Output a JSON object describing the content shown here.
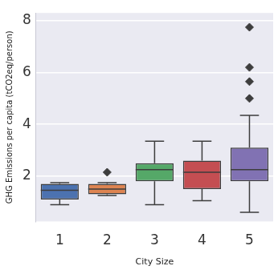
{
  "chart_data": {
    "type": "boxplot",
    "x_label": "City Size",
    "y_label": "GHG Emissions per capita (tCO2eq/person)",
    "categories": [
      "1",
      "2",
      "3",
      "4",
      "5"
    ],
    "colors": [
      "#4c72b0",
      "#dd8452",
      "#55a868",
      "#c44e52",
      "#8172b3"
    ],
    "boxes": [
      {
        "min": 0.9,
        "q1": 1.1,
        "median": 1.45,
        "q3": 1.7,
        "max": 1.75,
        "outliers": []
      },
      {
        "min": 1.25,
        "q1": 1.3,
        "median": 1.5,
        "q3": 1.7,
        "max": 1.75,
        "outliers": [
          2.15
        ]
      },
      {
        "min": 0.9,
        "q1": 1.8,
        "median": 2.25,
        "q3": 2.5,
        "max": 3.35,
        "outliers": []
      },
      {
        "min": 1.05,
        "q1": 1.5,
        "median": 2.15,
        "q3": 2.6,
        "max": 3.35,
        "outliers": []
      },
      {
        "min": 0.6,
        "q1": 1.8,
        "median": 2.25,
        "q3": 3.1,
        "max": 4.35,
        "outliers": [
          5.0,
          5.65,
          6.2,
          7.75
        ]
      }
    ],
    "ylim": [
      0.25,
      8.3
    ],
    "yticks": [
      2,
      4,
      6,
      8
    ],
    "grid": true
  }
}
